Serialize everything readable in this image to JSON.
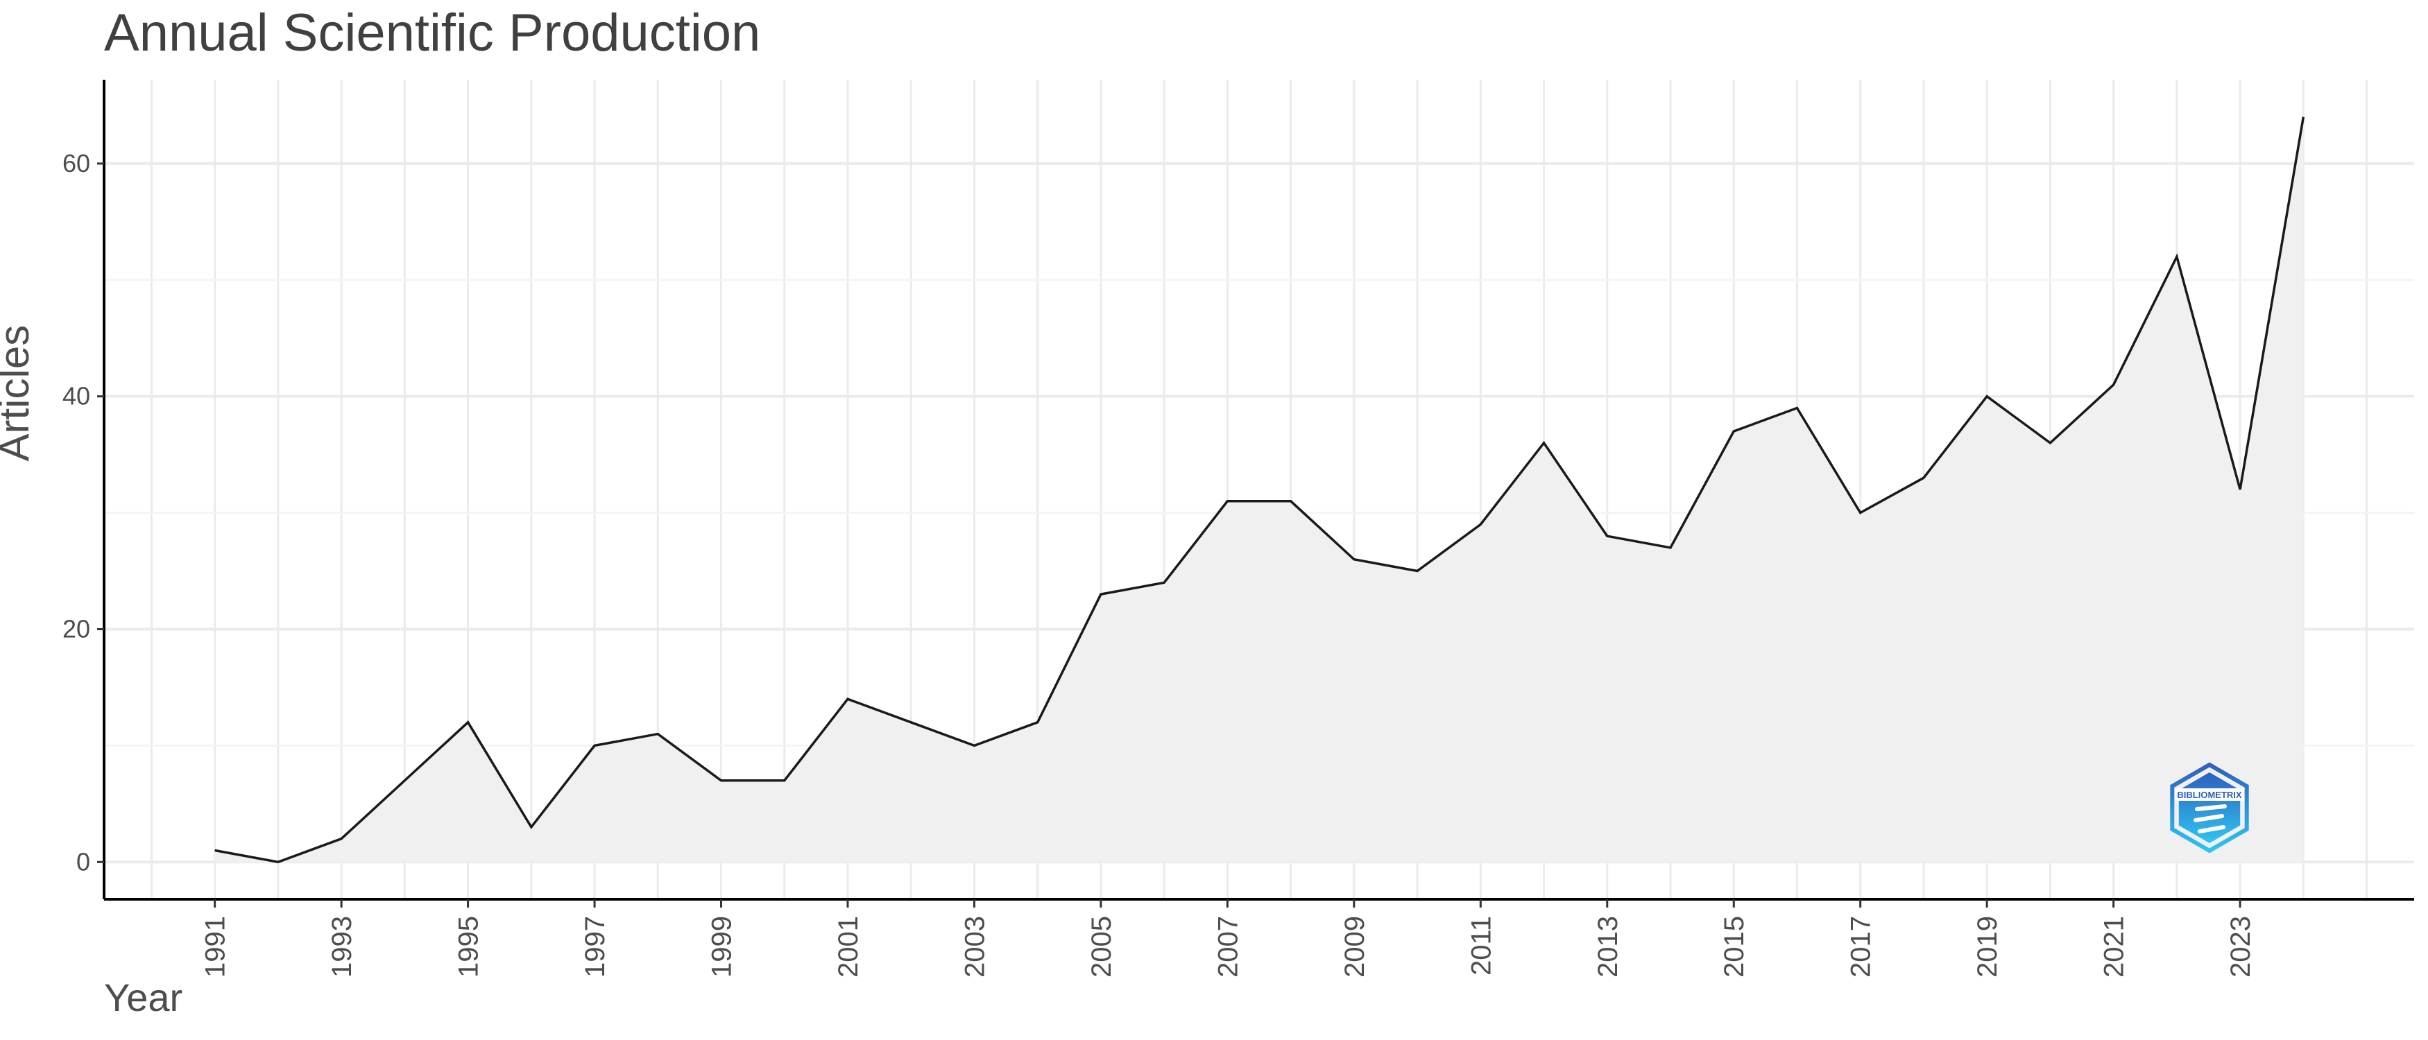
{
  "chart_data": {
    "type": "area",
    "title": "Annual Scientific Production",
    "xlabel": "Year",
    "ylabel": "Articles",
    "x": [
      1991,
      1992,
      1993,
      1994,
      1995,
      1996,
      1997,
      1998,
      1999,
      2000,
      2001,
      2002,
      2003,
      2004,
      2005,
      2006,
      2007,
      2008,
      2009,
      2010,
      2011,
      2012,
      2013,
      2014,
      2015,
      2016,
      2017,
      2018,
      2019,
      2020,
      2021,
      2022,
      2023,
      2024
    ],
    "series": [
      {
        "values": [
          1,
          0,
          2,
          7,
          12,
          3,
          10,
          11,
          7,
          7,
          14,
          12,
          10,
          12,
          23,
          24,
          31,
          31,
          26,
          25,
          29,
          36,
          28,
          27,
          37,
          39,
          30,
          33,
          40,
          36,
          41,
          52,
          32,
          64
        ]
      }
    ],
    "x_tick_labels": [
      "1991",
      "1993",
      "1995",
      "1997",
      "1999",
      "2001",
      "2003",
      "2005",
      "2007",
      "2009",
      "2011",
      "2013",
      "2015",
      "2017",
      "2019",
      "2021",
      "2023"
    ],
    "y_tick_labels": [
      "0",
      "20",
      "40",
      "60"
    ],
    "xlim": [
      1989.25,
      2025.75
    ],
    "ylim": [
      -3.2,
      67.2
    ],
    "grid": true,
    "legend": "none",
    "colors": {
      "line": "#1a1a1a",
      "fill": "#f0f0f0",
      "grid": "#ebebeb",
      "axis": "#000000",
      "tick_text": "#4d4d4d",
      "logo_dark": "#2e5fbf",
      "logo_light": "#2ec5f0"
    },
    "watermark": {
      "icon": "bibliometrix-logo-icon",
      "text": "BIBLIOMETRIX"
    }
  }
}
